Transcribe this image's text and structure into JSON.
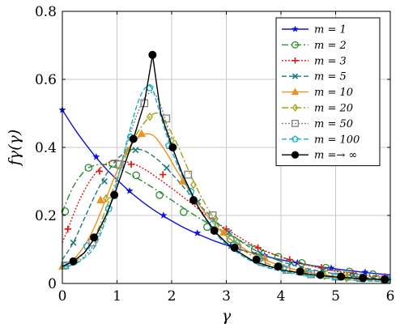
{
  "chart_data": {
    "type": "line",
    "xlabel": "γ",
    "ylabel": "fγ(γ)",
    "xlim": [
      0,
      6
    ],
    "ylim": [
      0,
      0.8
    ],
    "xticks": [
      0,
      1,
      2,
      3,
      4,
      5,
      6
    ],
    "yticks": [
      0,
      0.2,
      0.4,
      0.6,
      0.8
    ],
    "xtick_labels": [
      "0",
      "1",
      "2",
      "3",
      "4",
      "5",
      "6"
    ],
    "ytick_labels": [
      "0",
      "0.2",
      "0.4",
      "0.6",
      "0.8"
    ],
    "grid": true,
    "legend_position": "top-right",
    "series": [
      {
        "name": "m = 1",
        "color": "#1010e0",
        "dash": "solid",
        "marker": "star",
        "x": [
          0,
          0.2,
          0.4,
          0.6,
          0.8,
          1.0,
          1.2,
          1.4,
          1.6,
          1.8,
          2.0,
          2.2,
          2.4,
          2.6,
          2.8,
          3.0,
          3.4,
          3.8,
          4.2,
          4.6,
          5.0,
          5.5,
          6.0
        ],
        "y": [
          0.51,
          0.46,
          0.415,
          0.374,
          0.337,
          0.305,
          0.275,
          0.248,
          0.224,
          0.203,
          0.184,
          0.166,
          0.151,
          0.137,
          0.124,
          0.113,
          0.093,
          0.077,
          0.063,
          0.052,
          0.043,
          0.033,
          0.025
        ],
        "marker_x": [
          0,
          0.62,
          1.23,
          1.85,
          2.47,
          3.08,
          3.7,
          4.3,
          4.92,
          5.54
        ],
        "marker_y": [
          0.51,
          0.372,
          0.272,
          0.2,
          0.148,
          0.11,
          0.082,
          0.061,
          0.045,
          0.033
        ]
      },
      {
        "name": "m = 2",
        "color": "#2e8b2e",
        "dash": "8,3,2,3",
        "marker": "circle",
        "x": [
          0,
          0.2,
          0.4,
          0.5,
          0.7,
          0.9,
          1.1,
          1.3,
          1.5,
          1.7,
          2.0,
          2.3,
          2.6,
          3.0,
          3.5,
          4.0,
          4.5,
          5.0,
          5.5,
          6.0
        ],
        "y": [
          0.21,
          0.285,
          0.33,
          0.342,
          0.35,
          0.345,
          0.333,
          0.316,
          0.297,
          0.277,
          0.245,
          0.213,
          0.183,
          0.147,
          0.108,
          0.078,
          0.055,
          0.039,
          0.027,
          0.019
        ],
        "marker_x": [
          0.05,
          0.48,
          0.92,
          1.35,
          1.78,
          2.22,
          2.65,
          3.08,
          3.52,
          3.95,
          4.38,
          4.82,
          5.25,
          5.68
        ],
        "marker_y": [
          0.212,
          0.34,
          0.352,
          0.318,
          0.26,
          0.21,
          0.166,
          0.13,
          0.1,
          0.078,
          0.06,
          0.046,
          0.035,
          0.027
        ]
      },
      {
        "name": "m = 3",
        "color": "#e81010",
        "dash": "2,2",
        "marker": "plus",
        "x": [
          0,
          0.1,
          0.3,
          0.5,
          0.7,
          0.9,
          1.0,
          1.1,
          1.3,
          1.5,
          1.7,
          2.0,
          2.3,
          2.6,
          3.0,
          3.5,
          4.0,
          4.5,
          5.0,
          5.5,
          6.0
        ],
        "y": [
          0.12,
          0.16,
          0.24,
          0.3,
          0.34,
          0.36,
          0.362,
          0.36,
          0.352,
          0.336,
          0.315,
          0.28,
          0.243,
          0.205,
          0.16,
          0.112,
          0.078,
          0.053,
          0.036,
          0.024,
          0.016
        ],
        "marker_x": [
          0.1,
          0.68,
          1.26,
          1.84,
          2.42,
          3.0,
          3.58,
          4.16,
          4.74,
          5.32,
          5.9
        ],
        "marker_y": [
          0.16,
          0.33,
          0.35,
          0.32,
          0.24,
          0.16,
          0.105,
          0.07,
          0.047,
          0.03,
          0.02
        ]
      },
      {
        "name": "m = 5",
        "color": "#1e7a7a",
        "dash": "6,3",
        "marker": "x",
        "x": [
          0,
          0.2,
          0.4,
          0.6,
          0.8,
          1.0,
          1.2,
          1.35,
          1.5,
          1.7,
          1.9,
          2.1,
          2.4,
          2.7,
          3.0,
          3.5,
          4.0,
          4.5,
          5.0,
          5.5,
          6.0
        ],
        "y": [
          0.07,
          0.12,
          0.19,
          0.26,
          0.32,
          0.365,
          0.39,
          0.395,
          0.39,
          0.37,
          0.34,
          0.305,
          0.25,
          0.2,
          0.155,
          0.1,
          0.065,
          0.043,
          0.028,
          0.018,
          0.012
        ],
        "marker_x": [
          0.2,
          0.77,
          1.34,
          1.91,
          2.48,
          3.05,
          3.62,
          4.19,
          4.76,
          5.33,
          5.9
        ],
        "marker_y": [
          0.12,
          0.3,
          0.392,
          0.34,
          0.24,
          0.15,
          0.09,
          0.06,
          0.038,
          0.025,
          0.015
        ]
      },
      {
        "name": "m = 10",
        "color": "#f09020",
        "dash": "solid",
        "marker": "triangle",
        "x": [
          0,
          0.2,
          0.4,
          0.6,
          0.8,
          1.0,
          1.2,
          1.4,
          1.55,
          1.7,
          1.9,
          2.1,
          2.4,
          2.7,
          3.0,
          3.5,
          4.0,
          4.5,
          5.0,
          5.5,
          6.0
        ],
        "y": [
          0.05,
          0.07,
          0.11,
          0.17,
          0.25,
          0.33,
          0.395,
          0.43,
          0.44,
          0.43,
          0.385,
          0.33,
          0.255,
          0.19,
          0.14,
          0.085,
          0.052,
          0.033,
          0.021,
          0.014,
          0.009
        ],
        "marker_x": [
          0.0,
          0.7,
          1.45,
          2.2,
          2.95,
          3.7,
          4.45,
          5.2,
          5.9
        ],
        "marker_y": [
          0.05,
          0.245,
          0.44,
          0.3,
          0.15,
          0.075,
          0.035,
          0.02,
          0.01
        ]
      },
      {
        "name": "m = 20",
        "color": "#a0a010",
        "dash": "8,3,2,3",
        "marker": "diamond",
        "x": [
          0,
          0.2,
          0.4,
          0.6,
          0.8,
          1.0,
          1.2,
          1.4,
          1.6,
          1.75,
          1.9,
          2.1,
          2.4,
          2.7,
          3.0,
          3.5,
          4.0,
          4.5,
          5.0,
          5.5,
          6.0
        ],
        "y": [
          0.05,
          0.06,
          0.09,
          0.14,
          0.22,
          0.31,
          0.39,
          0.45,
          0.49,
          0.5,
          0.47,
          0.41,
          0.3,
          0.21,
          0.14,
          0.078,
          0.045,
          0.027,
          0.017,
          0.011,
          0.007
        ],
        "marker_x": [
          0.8,
          1.2,
          1.6,
          2.0,
          2.4,
          2.8,
          3.2,
          3.6,
          4.0,
          4.4,
          4.8,
          5.2
        ],
        "marker_y": [
          0.25,
          0.39,
          0.49,
          0.42,
          0.29,
          0.19,
          0.12,
          0.078,
          0.05,
          0.033,
          0.022,
          0.015
        ]
      },
      {
        "name": "m = 50",
        "color": "#808080",
        "dash": "2,2",
        "marker": "square",
        "x": [
          0,
          0.2,
          0.4,
          0.6,
          0.8,
          1.0,
          1.2,
          1.4,
          1.55,
          1.7,
          1.85,
          2.0,
          2.2,
          2.4,
          2.7,
          3.0,
          3.5,
          4.0,
          4.5,
          5.0,
          5.5,
          6.0
        ],
        "y": [
          0.05,
          0.055,
          0.08,
          0.12,
          0.2,
          0.3,
          0.42,
          0.51,
          0.555,
          0.555,
          0.5,
          0.41,
          0.32,
          0.25,
          0.175,
          0.12,
          0.065,
          0.038,
          0.023,
          0.014,
          0.009,
          0.006
        ],
        "marker_x": [
          0.05,
          0.55,
          1.05,
          1.5,
          1.9,
          2.3,
          2.75,
          3.2,
          3.65,
          4.1,
          4.55,
          5.0,
          5.45,
          5.9
        ],
        "marker_y": [
          0.053,
          0.12,
          0.35,
          0.53,
          0.485,
          0.32,
          0.2,
          0.105,
          0.063,
          0.04,
          0.027,
          0.02,
          0.016,
          0.012
        ]
      },
      {
        "name": "m = 100",
        "color": "#10b0d0",
        "dash": "6,3",
        "marker": "pentagon",
        "x": [
          0,
          0.2,
          0.4,
          0.6,
          0.8,
          1.0,
          1.2,
          1.4,
          1.55,
          1.65,
          1.75,
          1.9,
          2.1,
          2.4,
          2.7,
          3.0,
          3.5,
          4.0,
          4.5,
          5.0,
          5.5,
          6.0
        ],
        "y": [
          0.05,
          0.055,
          0.075,
          0.11,
          0.19,
          0.3,
          0.43,
          0.54,
          0.58,
          0.57,
          0.52,
          0.44,
          0.35,
          0.25,
          0.17,
          0.115,
          0.062,
          0.036,
          0.022,
          0.013,
          0.008,
          0.005
        ],
        "marker_x": [
          0.05,
          0.45,
          0.85,
          1.25,
          1.6,
          1.95,
          2.35,
          2.75,
          3.15,
          3.6,
          4.05,
          4.5,
          5.0,
          5.5,
          5.95
        ],
        "marker_y": [
          0.052,
          0.11,
          0.22,
          0.43,
          0.575,
          0.405,
          0.27,
          0.175,
          0.115,
          0.072,
          0.045,
          0.03,
          0.02,
          0.013,
          0.01
        ]
      },
      {
        "name": "m =→ ∞",
        "color": "#000000",
        "dash": "solid",
        "marker": "dot",
        "x": [
          0,
          0.2,
          0.4,
          0.6,
          0.8,
          0.95,
          1.1,
          1.3,
          1.5,
          1.65,
          1.8,
          2.0,
          2.2,
          2.5,
          2.8,
          3.1,
          3.5,
          4.0,
          4.5,
          5.0,
          5.5,
          6.0
        ],
        "y": [
          0.05,
          0.065,
          0.09,
          0.135,
          0.2,
          0.26,
          0.33,
          0.425,
          0.53,
          0.672,
          0.5,
          0.405,
          0.32,
          0.22,
          0.15,
          0.105,
          0.065,
          0.04,
          0.027,
          0.019,
          0.014,
          0.011
        ],
        "marker_x": [
          0.2,
          0.58,
          0.95,
          1.3,
          1.65,
          2.02,
          2.4,
          2.78,
          3.15,
          3.55,
          3.95,
          4.35,
          4.72,
          5.1,
          5.5,
          5.9
        ],
        "marker_y": [
          0.065,
          0.135,
          0.26,
          0.425,
          0.672,
          0.4,
          0.245,
          0.155,
          0.105,
          0.07,
          0.05,
          0.035,
          0.025,
          0.02,
          0.016,
          0.012
        ]
      }
    ]
  }
}
